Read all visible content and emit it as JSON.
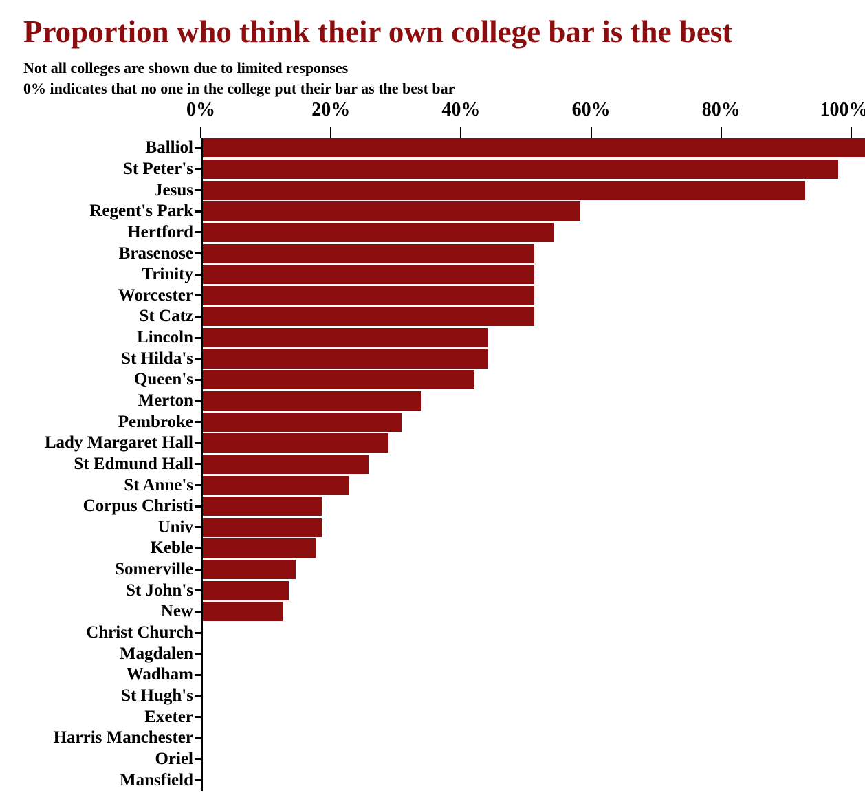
{
  "title": "Proportion who think their own college bar is the best",
  "subtitle1": "Not all colleges are shown due to limited responses",
  "subtitle2": "0% indicates that no one in the college put their bar as the best bar",
  "colors": {
    "title": "#8b0d0d",
    "bar": "#8b0d0d",
    "axis": "#000000",
    "background": "#ffffff"
  },
  "chart_data": {
    "type": "bar",
    "orientation": "horizontal",
    "title": "Proportion who think their own college bar is the best",
    "xlabel": "",
    "ylabel": "",
    "xlim": [
      0,
      100
    ],
    "grid": false,
    "legend": "none",
    "x_ticks": [
      "0%",
      "20%",
      "40%",
      "60%",
      "80%",
      "100%"
    ],
    "x_tick_values": [
      0,
      20,
      40,
      60,
      80,
      100
    ],
    "categories": [
      "Balliol",
      "St Peter's",
      "Jesus",
      "Regent's Park",
      "Hertford",
      "Brasenose",
      "Trinity",
      "Worcester",
      "St Catz",
      "Lincoln",
      "St Hilda's",
      "Queen's",
      "Merton",
      "Pembroke",
      "Lady Margaret Hall",
      "St Edmund Hall",
      "St Anne's",
      "Corpus Christi",
      "Univ",
      "Keble",
      "Somerville",
      "St John's",
      "New",
      "Christ Church",
      "Magdalen",
      "Wadham",
      "St Hugh's",
      "Exeter",
      "Harris Manchester",
      "Oriel",
      "Mansfield"
    ],
    "values": [
      100,
      96,
      91,
      57,
      53,
      50,
      50,
      50,
      50,
      43,
      43,
      41,
      33,
      30,
      28,
      25,
      22,
      18,
      18,
      17,
      14,
      13,
      12,
      0,
      0,
      0,
      0,
      0,
      0,
      0,
      0
    ]
  }
}
